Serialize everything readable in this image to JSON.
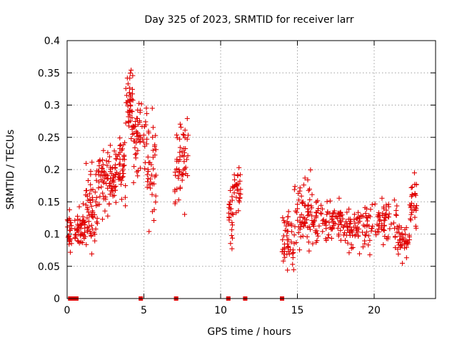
{
  "chart_data": {
    "type": "scatter",
    "title": "Day 325 of 2023, SRMTID for receiver larr",
    "xlabel": "GPS time / hours",
    "ylabel": "SRMTID / TECUs",
    "xlim": [
      0,
      24
    ],
    "ylim": [
      0,
      0.4
    ],
    "xticks": [
      0,
      5,
      10,
      15,
      20
    ],
    "yticks": [
      0,
      0.05,
      0.1,
      0.15,
      0.2,
      0.25,
      0.3,
      0.35,
      0.4
    ],
    "xtick_labels": [
      "0",
      "5",
      "10",
      "15",
      "20"
    ],
    "ytick_labels": [
      "0",
      "0.05",
      "0.1",
      "0.15",
      "0.2",
      "0.25",
      "0.3",
      "0.35",
      "0.4"
    ],
    "marker": "+",
    "color": "#e00000",
    "grid": true,
    "zero_markers": [
      0.2,
      0.3,
      0.4,
      0.5,
      0.6,
      4.8,
      7.1,
      10.5,
      11.6,
      14.0
    ],
    "clusters": [
      {
        "x": [
          0.0,
          0.3
        ],
        "center": 0.1,
        "spread": 0.03,
        "n": 25
      },
      {
        "x": [
          0.5,
          1.2
        ],
        "center": 0.11,
        "spread": 0.03,
        "n": 45
      },
      {
        "x": [
          1.2,
          2.0
        ],
        "center": 0.14,
        "spread": 0.06,
        "n": 60
      },
      {
        "x": [
          2.0,
          3.0
        ],
        "center": 0.18,
        "spread": 0.05,
        "n": 70
      },
      {
        "x": [
          3.0,
          3.8
        ],
        "center": 0.2,
        "spread": 0.05,
        "n": 60
      },
      {
        "x": [
          3.8,
          4.3
        ],
        "center": 0.3,
        "spread": 0.05,
        "n": 45
      },
      {
        "x": [
          4.3,
          5.2
        ],
        "center": 0.25,
        "spread": 0.05,
        "n": 55
      },
      {
        "x": [
          5.2,
          5.8
        ],
        "center": 0.2,
        "spread": 0.07,
        "n": 40
      },
      {
        "x": [
          7.0,
          7.9
        ],
        "center": 0.22,
        "spread": 0.06,
        "n": 55
      },
      {
        "x": [
          10.5,
          10.8
        ],
        "center": 0.13,
        "spread": 0.04,
        "n": 25
      },
      {
        "x": [
          10.8,
          11.3
        ],
        "center": 0.17,
        "spread": 0.04,
        "n": 30
      },
      {
        "x": [
          14.0,
          14.8
        ],
        "center": 0.09,
        "spread": 0.04,
        "n": 50
      },
      {
        "x": [
          14.8,
          16.0
        ],
        "center": 0.13,
        "spread": 0.05,
        "n": 70
      },
      {
        "x": [
          16.0,
          18.0
        ],
        "center": 0.12,
        "spread": 0.03,
        "n": 90
      },
      {
        "x": [
          18.0,
          20.0
        ],
        "center": 0.11,
        "spread": 0.03,
        "n": 90
      },
      {
        "x": [
          20.0,
          21.5
        ],
        "center": 0.12,
        "spread": 0.03,
        "n": 60
      },
      {
        "x": [
          21.5,
          22.3
        ],
        "center": 0.09,
        "spread": 0.025,
        "n": 40
      },
      {
        "x": [
          22.3,
          22.8
        ],
        "center": 0.15,
        "spread": 0.04,
        "n": 30
      }
    ]
  }
}
